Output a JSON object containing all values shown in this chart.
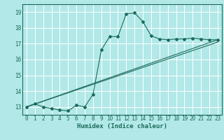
{
  "xlabel": "Humidex (Indice chaleur)",
  "ylabel": "",
  "bg_color": "#b2e8e8",
  "grid_color": "#ffffff",
  "line_color": "#1a6b5a",
  "xlim": [
    -0.5,
    23.5
  ],
  "ylim": [
    12.5,
    19.5
  ],
  "xticks": [
    0,
    1,
    2,
    3,
    4,
    5,
    6,
    7,
    8,
    9,
    10,
    11,
    12,
    13,
    14,
    15,
    16,
    17,
    18,
    19,
    20,
    21,
    22,
    23
  ],
  "yticks": [
    13,
    14,
    15,
    16,
    17,
    18,
    19
  ],
  "series1_x": [
    0,
    1,
    2,
    3,
    4,
    5,
    6,
    7,
    8,
    9,
    10,
    11,
    12,
    13,
    14,
    15,
    16,
    17,
    18,
    19,
    20,
    21,
    22,
    23
  ],
  "series1_y": [
    13.0,
    13.2,
    13.0,
    12.9,
    12.8,
    12.75,
    13.1,
    13.0,
    13.8,
    16.6,
    17.45,
    17.45,
    18.9,
    18.95,
    18.4,
    17.5,
    17.3,
    17.25,
    17.3,
    17.3,
    17.35,
    17.3,
    17.25,
    17.25
  ],
  "series2_x": [
    0,
    23
  ],
  "series2_y": [
    13.0,
    17.25
  ],
  "series3_x": [
    0,
    23
  ],
  "series3_y": [
    13.0,
    17.1
  ],
  "tick_fontsize": 5.5,
  "xlabel_fontsize": 6.5
}
